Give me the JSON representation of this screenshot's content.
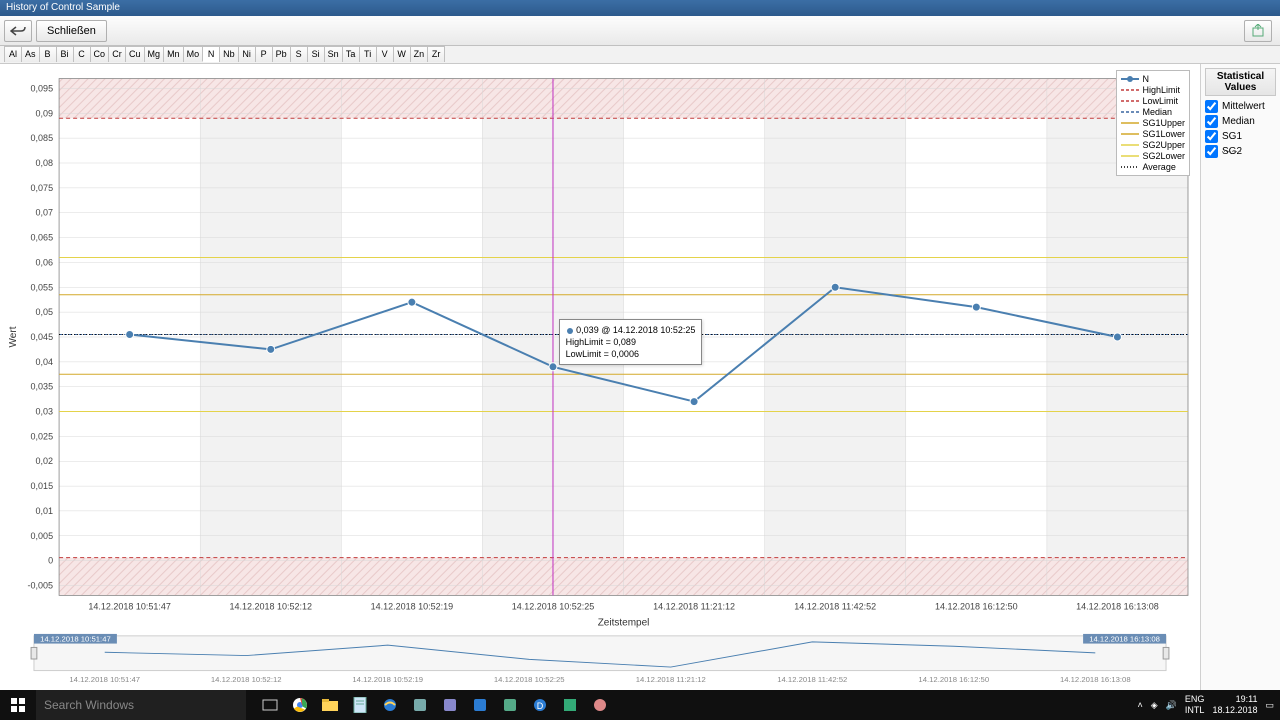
{
  "window": {
    "title": "History of Control Sample"
  },
  "toolbar": {
    "close_label": "Schließen"
  },
  "elements": [
    "Al",
    "As",
    "B",
    "Bi",
    "C",
    "Co",
    "Cr",
    "Cu",
    "Mg",
    "Mn",
    "Mo",
    "N",
    "Nb",
    "Ni",
    "P",
    "Pb",
    "S",
    "Si",
    "Sn",
    "Ta",
    "Ti",
    "V",
    "W",
    "Zn",
    "Zr"
  ],
  "active_element": "N",
  "chart": {
    "type": "line",
    "ylabel": "Wert",
    "xlabel": "Zeitstempel",
    "ylim": [
      -0.007,
      0.097
    ],
    "ytick_step": 0.005,
    "categories": [
      "14.12.2018 10:51:47",
      "14.12.2018 10:52:12",
      "14.12.2018 10:52:19",
      "14.12.2018 10:52:25",
      "14.12.2018 11:21:12",
      "14.12.2018 11:42:52",
      "14.12.2018 16:12:50",
      "14.12.2018 16:13:08"
    ],
    "values": [
      0.0455,
      0.0425,
      0.052,
      0.039,
      0.032,
      0.055,
      0.051,
      0.045
    ],
    "series_color": "#4a7fb0",
    "marker_radius": 4,
    "line_width": 2,
    "background_color": "#ffffff",
    "alt_band_color": "#f2f2f2",
    "grid_color": "#d8d8d8",
    "axis_color": "#888888",
    "out_of_range_fill": "#f7e6e6",
    "out_of_range_hatch": "#e8c9c9",
    "limits": {
      "HighLimit": {
        "value": 0.089,
        "color": "#c23b3b",
        "dash": "4,3"
      },
      "LowLimit": {
        "value": 0.0006,
        "color": "#c23b3b",
        "dash": "4,3"
      },
      "Median": {
        "value": 0.0455,
        "color": "#3a66a0",
        "dash": "3,2"
      },
      "SG1Upper": {
        "value": 0.0535,
        "color": "#d4a92a",
        "dash": "none"
      },
      "SG1Lower": {
        "value": 0.0375,
        "color": "#d4a92a",
        "dash": "none"
      },
      "SG2Upper": {
        "value": 0.061,
        "color": "#e4d34a",
        "dash": "none"
      },
      "SG2Lower": {
        "value": 0.03,
        "color": "#e4d34a",
        "dash": "none"
      },
      "Average": {
        "value": 0.0455,
        "color": "#000000",
        "dash": "1,2"
      }
    },
    "cursor_index": 3,
    "cursor_color": "#c030c0",
    "tooltip": {
      "l1": "0,039 @ 14.12.2018 10:52:25",
      "l2": "HighLimit = 0,089",
      "l3": "LowLimit = 0,0006"
    },
    "legend": [
      {
        "label": "N",
        "kind": "line-marker",
        "color": "#4a7fb0"
      },
      {
        "label": "HighLimit",
        "kind": "dash",
        "color": "#c23b3b"
      },
      {
        "label": "LowLimit",
        "kind": "dash",
        "color": "#c23b3b"
      },
      {
        "label": "Median",
        "kind": "dash",
        "color": "#3a66a0"
      },
      {
        "label": "SG1Upper",
        "kind": "solid",
        "color": "#d4a92a"
      },
      {
        "label": "SG1Lower",
        "kind": "solid",
        "color": "#d4a92a"
      },
      {
        "label": "SG2Upper",
        "kind": "solid",
        "color": "#e4d34a"
      },
      {
        "label": "SG2Lower",
        "kind": "solid",
        "color": "#e4d34a"
      },
      {
        "label": "Average",
        "kind": "dot",
        "color": "#000000"
      }
    ]
  },
  "mini": {
    "range_start_label": "14.12.2018 10:51:47",
    "range_end_label": "14.12.2018 16:13:08"
  },
  "side_panel": {
    "title": "Statistical Values",
    "checks": [
      {
        "label": "Mittelwert",
        "checked": true
      },
      {
        "label": "Median",
        "checked": true
      },
      {
        "label": "SG1",
        "checked": true
      },
      {
        "label": "SG2",
        "checked": true
      }
    ]
  },
  "taskbar": {
    "search_placeholder": "Search Windows",
    "lang1": "ENG",
    "lang2": "INTL",
    "time": "19:11",
    "date": "18.12.2018"
  }
}
